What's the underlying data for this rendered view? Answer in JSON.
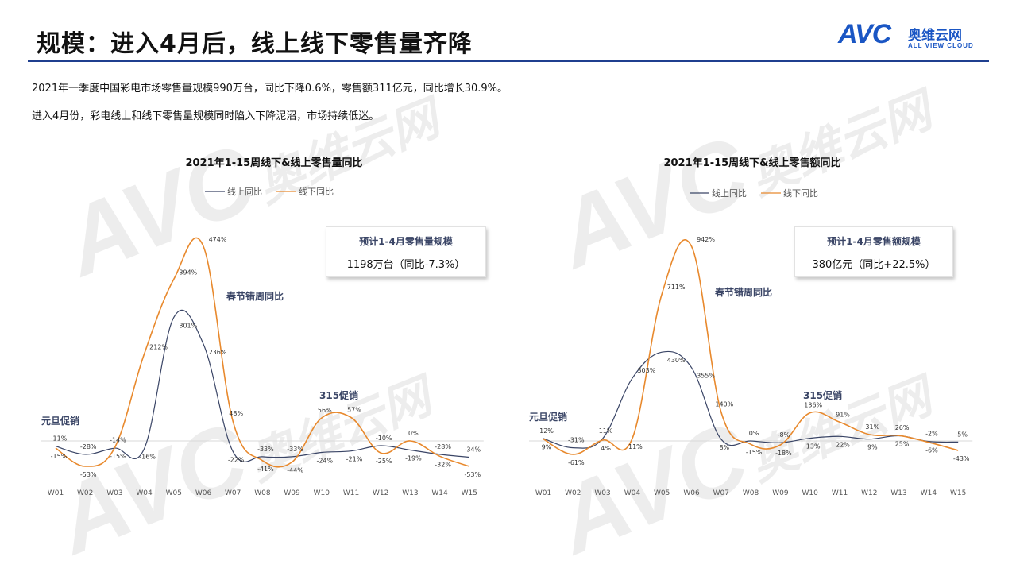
{
  "header": {
    "title": "规模：进入4月后，线上线下零售量齐降",
    "logo_mark": "AVC",
    "logo_cn": "奥维云网",
    "logo_en": "ALL VIEW CLOUD"
  },
  "summary": [
    "2021年一季度中国彩电市场零售量规模990万台，同比下降0.6%，零售额311亿元，同比增长30.9%。",
    "进入4月份，彩电线上和线下零售量规模同时陷入下降泥沼，市场持续低迷。"
  ],
  "watermark": {
    "mark": "AVC",
    "cn": "奥维云网",
    "en": "ALL VIEW CLOUD"
  },
  "colors": {
    "online": "#3a4566",
    "offline": "#e8892d",
    "accent": "#1f3f8f"
  },
  "charts": [
    {
      "kpi_title": "预计1-4月零售量规模",
      "kpi_value": "1198万台（同比-7.3%）",
      "ann_spring": "春节错周同比",
      "ann_315": "315促销",
      "ann_newyear": "元旦促销"
    },
    {
      "kpi_title": "预计1-4月零售额规模",
      "kpi_value": "380亿元（同比+22.5%）",
      "ann_spring": "春节错周同比",
      "ann_315": "315促销",
      "ann_newyear": "元旦促销"
    }
  ],
  "chart_data": [
    {
      "type": "line",
      "title": "2021年1-15周线下&线上零售量同比",
      "categories": [
        "W01",
        "W02",
        "W03",
        "W04",
        "W05",
        "W06",
        "W07",
        "W08",
        "W09",
        "W10",
        "W11",
        "W12",
        "W13",
        "W14",
        "W15"
      ],
      "series": [
        {
          "name": "线上同比",
          "values": [
            -11,
            -28,
            -15,
            -16,
            301,
            236,
            -22,
            -33,
            -33,
            -24,
            -21,
            -10,
            -19,
            -28,
            -34
          ],
          "labels": [
            "-11%",
            "-28%",
            "-15%",
            "-16%",
            "301%",
            "236%",
            "-22%",
            "-33%",
            "-33%",
            "-24%",
            "-21%",
            "-10%",
            "-19%",
            "-28%",
            "-34%"
          ]
        },
        {
          "name": "线下同比",
          "values": [
            -15,
            -53,
            -14,
            212,
            394,
            474,
            48,
            -41,
            -44,
            56,
            57,
            -25,
            0,
            -32,
            -53
          ],
          "labels": [
            "-15%",
            "-53%",
            "-14%",
            "212%",
            "394%",
            "474%",
            "48%",
            "-41%",
            "-44%",
            "56%",
            "57%",
            "-25%",
            "0%",
            "-32%",
            "-53%"
          ]
        }
      ],
      "legend": "top"
    },
    {
      "type": "line",
      "title": "2021年1-15周线下&线上零售额同比",
      "categories": [
        "W01",
        "W02",
        "W03",
        "W04",
        "W05",
        "W06",
        "W07",
        "W08",
        "W09",
        "W10",
        "W11",
        "W12",
        "W13",
        "W14",
        "W15"
      ],
      "series": [
        {
          "name": "线上同比",
          "values": [
            12,
            -31,
            11,
            303,
            430,
            355,
            8,
            0,
            -8,
            13,
            22,
            9,
            25,
            -2,
            -5
          ],
          "labels": [
            "12%",
            "-31%",
            "11%",
            "303%",
            "430%",
            "355%",
            "8%",
            "0%",
            "-8%",
            "13%",
            "22%",
            "9%",
            "25%",
            "-2%",
            "-5%"
          ]
        },
        {
          "name": "线下同比",
          "values": [
            9,
            -61,
            4,
            11,
            711,
            942,
            140,
            -15,
            -18,
            136,
            91,
            31,
            26,
            -6,
            -43
          ],
          "labels": [
            "9%",
            "-61%",
            "4%",
            "11%",
            "711%",
            "942%",
            "140%",
            "-15%",
            "-18%",
            "136%",
            "91%",
            "31%",
            "26%",
            "-6%",
            "-43%"
          ]
        }
      ],
      "legend": "top"
    }
  ]
}
